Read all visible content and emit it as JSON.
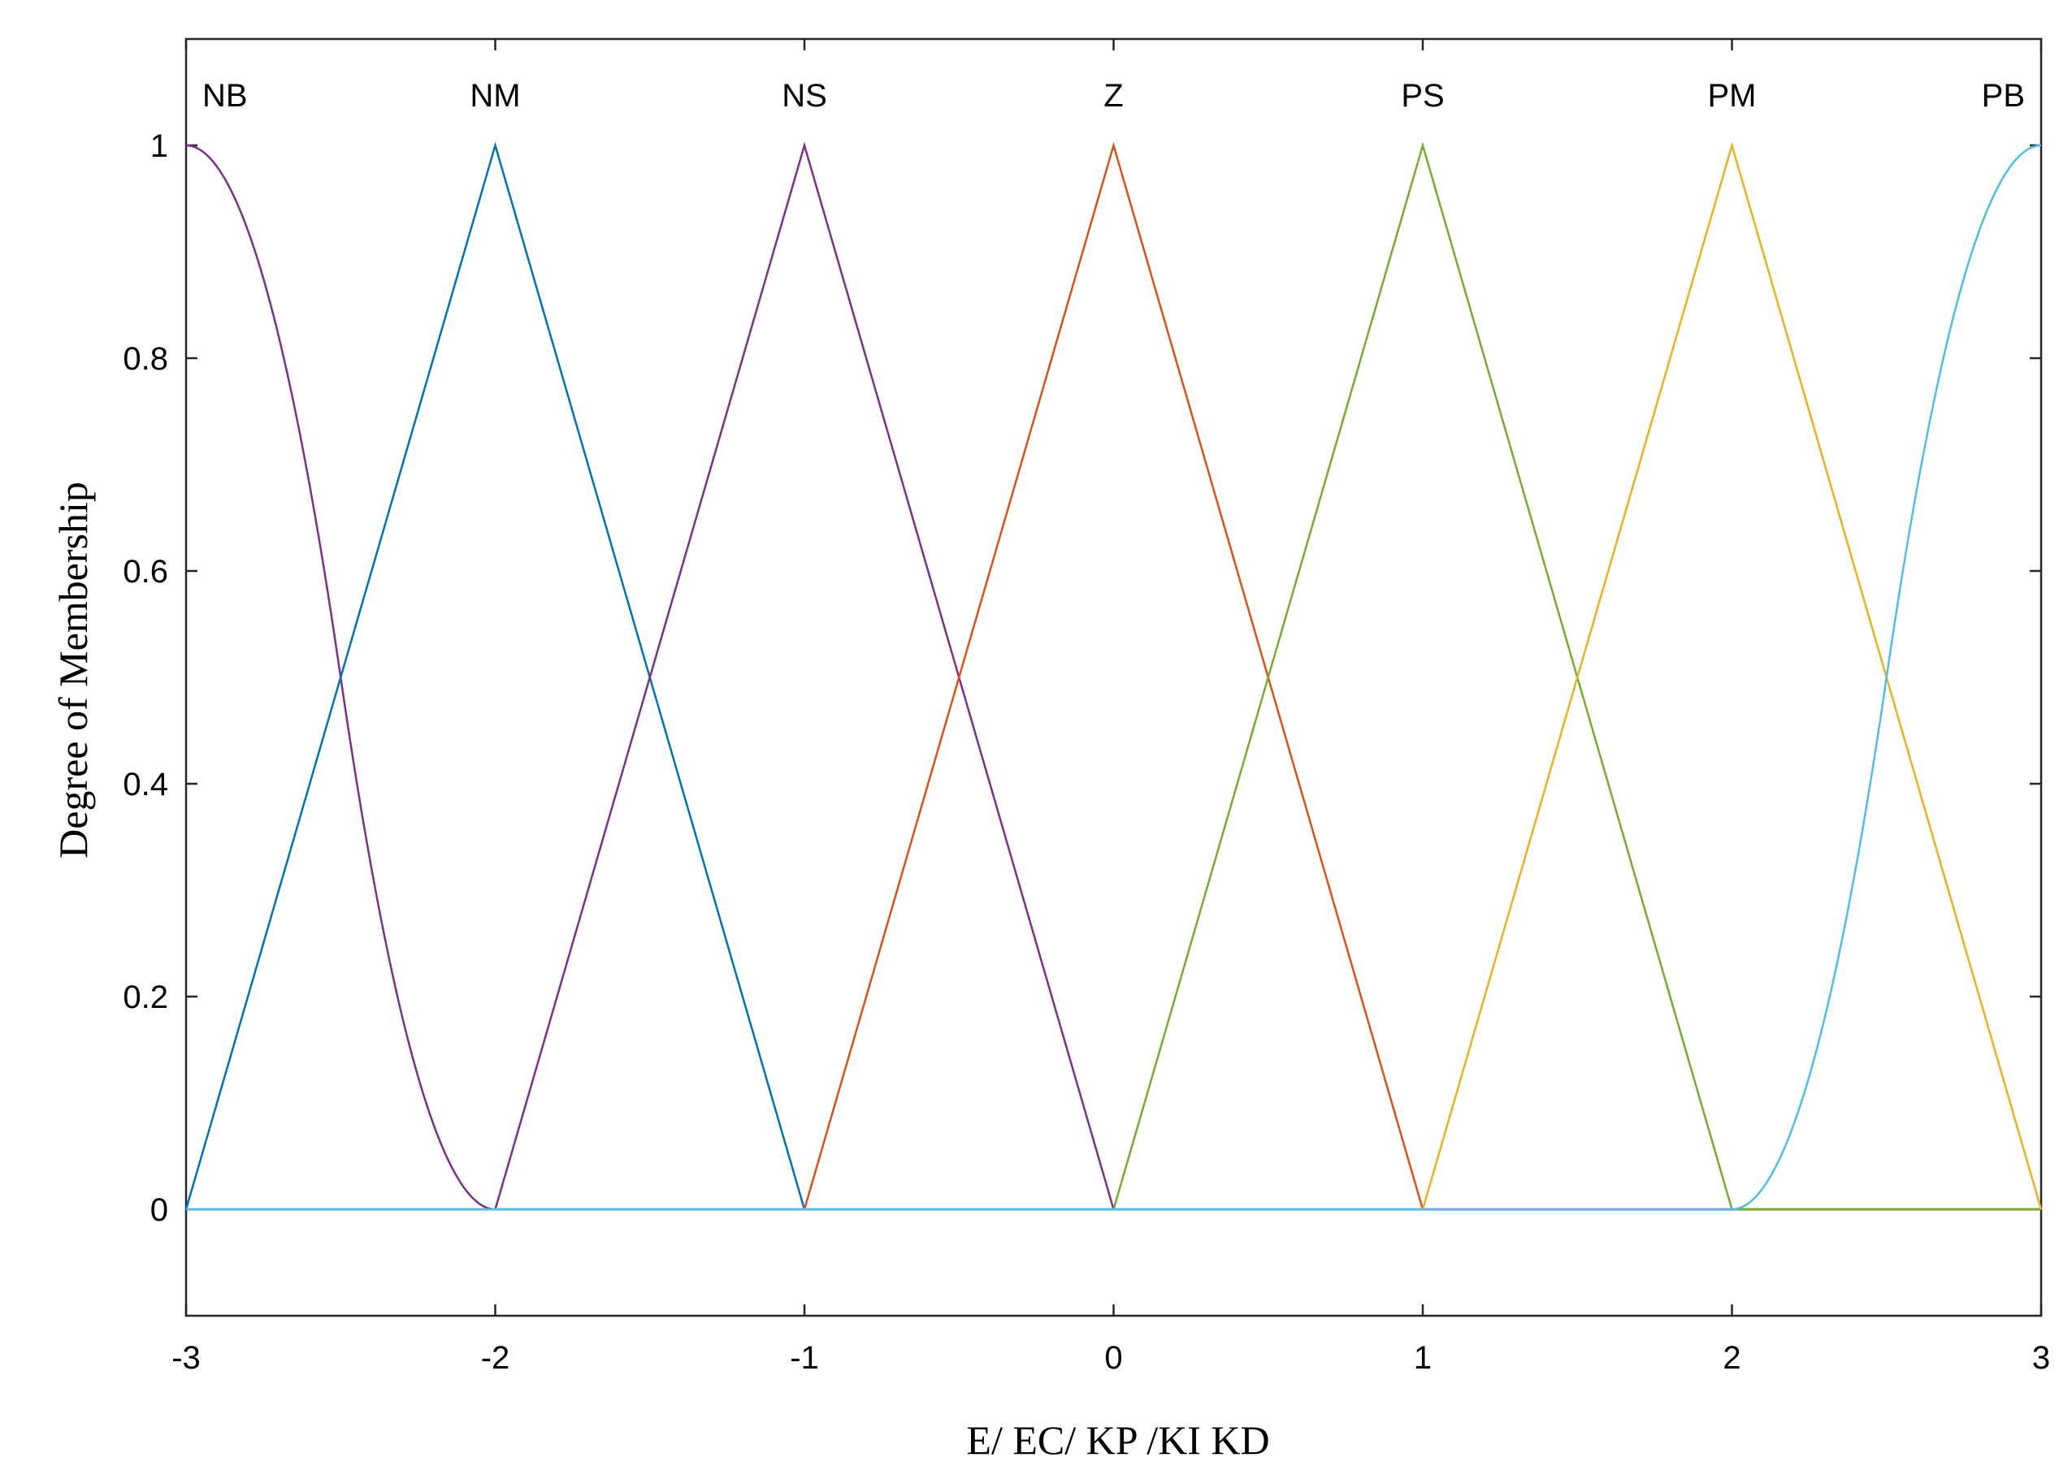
{
  "chart_data": {
    "type": "line",
    "title": "",
    "xlabel": "E/ EC/ KP /KI KD",
    "ylabel": "Degree of Membership",
    "xlim": [
      -3,
      3
    ],
    "ylim": [
      -0.1,
      1.1
    ],
    "xticks": [
      -3,
      -2,
      -1,
      0,
      1,
      2,
      3
    ],
    "xtick_labels": [
      "-3",
      "-2",
      "-1",
      "0",
      "1",
      "2",
      "3"
    ],
    "yticks": [
      0,
      0.2,
      0.4,
      0.6,
      0.8,
      1
    ],
    "ytick_labels": [
      "0",
      "0.2",
      "0.4",
      "0.6",
      "0.8",
      "1"
    ],
    "grid": false,
    "legend": "none",
    "series": [
      {
        "name": "NB",
        "shape": "z-shaped",
        "params": [
          -3,
          -2
        ],
        "color": "#7E2F8E",
        "x": [
          -3,
          -2.5,
          -2,
          3
        ],
        "y": [
          1,
          0.5,
          0,
          0
        ]
      },
      {
        "name": "NM",
        "shape": "triangle",
        "params": [
          -3,
          -2,
          -1
        ],
        "color": "#0072BD",
        "x": [
          -3,
          -2,
          -1,
          3
        ],
        "y": [
          0,
          1,
          0,
          0
        ]
      },
      {
        "name": "NS",
        "shape": "triangle",
        "params": [
          -2,
          -1,
          0
        ],
        "color": "#7E2F8E",
        "x": [
          -3,
          -2,
          -1,
          0,
          3
        ],
        "y": [
          0,
          0,
          1,
          0,
          0
        ]
      },
      {
        "name": "Z",
        "shape": "triangle",
        "params": [
          -1,
          0,
          1
        ],
        "color": "#D95319",
        "x": [
          -3,
          -1,
          0,
          1,
          3
        ],
        "y": [
          0,
          0,
          1,
          0,
          0
        ]
      },
      {
        "name": "PS",
        "shape": "triangle",
        "params": [
          0,
          1,
          2
        ],
        "color": "#77AC30",
        "x": [
          -3,
          0,
          1,
          2,
          3
        ],
        "y": [
          0,
          0,
          1,
          0,
          0
        ]
      },
      {
        "name": "PM",
        "shape": "triangle",
        "params": [
          1,
          2,
          3
        ],
        "color": "#EDB120",
        "x": [
          -3,
          1,
          2,
          3
        ],
        "y": [
          0,
          0,
          1,
          0
        ]
      },
      {
        "name": "PB",
        "shape": "s-shaped",
        "params": [
          2,
          3
        ],
        "color": "#4DBEEE",
        "x": [
          -3,
          2,
          2.5,
          3
        ],
        "y": [
          0,
          0,
          0.5,
          1
        ]
      }
    ]
  }
}
